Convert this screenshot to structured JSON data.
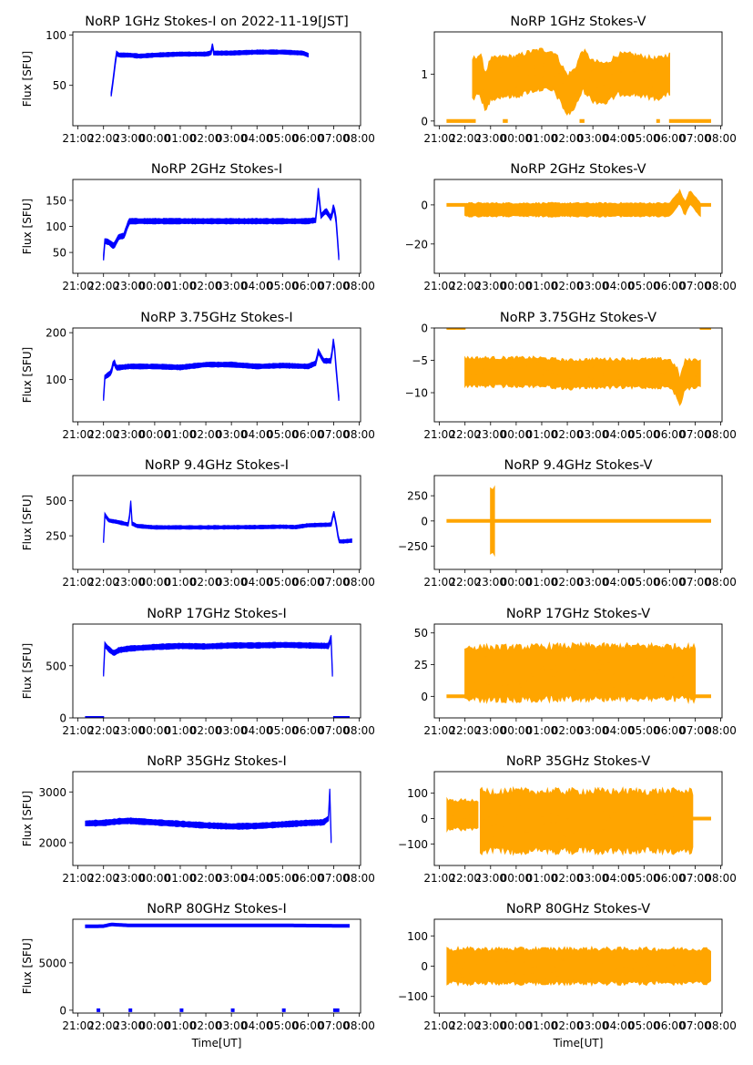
{
  "figure": {
    "columns": [
      "Stokes-I",
      "Stokes-V"
    ],
    "colors": {
      "stokes_i": "#0000ff",
      "stokes_v": "#ffa500"
    }
  },
  "chart_data": [
    {
      "type": "scatter",
      "panel": "1GHz-I",
      "title": "NoRP 1GHz Stokes-I on 2022-11-19[JST]",
      "ylabel": "Flux [SFU]",
      "xlabel": "",
      "ylim": [
        10,
        103
      ],
      "yticks": [
        50,
        100
      ],
      "xticks": [
        "21:00",
        "22:00",
        "23:00",
        "00:00",
        "01:00",
        "02:00",
        "03:00",
        "04:00",
        "05:00",
        "06:00",
        "07:00",
        "08:00"
      ],
      "xlim_hours": [
        -0.2,
        11.05
      ],
      "color": "#0000ff",
      "segments": [
        {
          "x": [
            1.3,
            1.35,
            1.45,
            1.5,
            1.6,
            2.0,
            2.4,
            3.0,
            4.0,
            5.0,
            5.2,
            5.25,
            5.3,
            6.0,
            7.0,
            8.0,
            8.8,
            9.0
          ],
          "y": [
            41,
            50,
            70,
            82,
            80,
            80,
            79,
            80,
            81,
            81,
            82,
            91,
            82,
            82,
            83,
            83,
            82,
            80
          ],
          "spread": 2
        }
      ]
    },
    {
      "type": "scatter",
      "panel": "1GHz-V",
      "title": "NoRP 1GHz Stokes-V",
      "ylabel": "",
      "xlabel": "",
      "ylim": [
        -0.1,
        1.9
      ],
      "yticks": [
        0,
        1
      ],
      "xticks": [
        "21:00",
        "22:00",
        "23:00",
        "00:00",
        "01:00",
        "02:00",
        "03:00",
        "04:00",
        "05:00",
        "06:00",
        "07:00",
        "08:00"
      ],
      "xlim_hours": [
        -0.2,
        11.05
      ],
      "color": "#ffa500",
      "segments": [
        {
          "x": [
            0.3,
            1.4
          ],
          "y": [
            0,
            0
          ],
          "spread": 0.02
        },
        {
          "x": [
            2.5,
            2.65
          ],
          "y": [
            0,
            0
          ],
          "spread": 0.02
        },
        {
          "x": [
            5.5,
            5.65
          ],
          "y": [
            0,
            0
          ],
          "spread": 0.02
        },
        {
          "x": [
            8.5,
            8.6
          ],
          "y": [
            0,
            0
          ],
          "spread": 0.02
        },
        {
          "x": [
            9.0,
            10.6
          ],
          "y": [
            0,
            0
          ],
          "spread": 0.02
        },
        {
          "x": [
            1.3,
            1.6,
            1.8,
            2.0,
            2.5,
            3.0,
            3.5,
            4.0,
            4.5,
            5.0,
            5.3,
            5.6,
            6.0,
            6.5,
            7.0,
            7.5,
            8.0,
            8.5,
            9.0
          ],
          "y": [
            0.9,
            1.0,
            0.6,
            0.9,
            0.95,
            0.95,
            1.05,
            1.1,
            1.05,
            0.55,
            0.7,
            1.1,
            0.85,
            0.8,
            1.0,
            1.0,
            0.95,
            0.9,
            1.0
          ],
          "spread": 0.45
        }
      ]
    },
    {
      "type": "scatter",
      "panel": "2GHz-I",
      "title": "NoRP 2GHz Stokes-I",
      "ylabel": "Flux [SFU]",
      "xlabel": "",
      "ylim": [
        10,
        190
      ],
      "yticks": [
        50,
        100,
        150
      ],
      "xticks": [
        "21:00",
        "22:00",
        "23:00",
        "00:00",
        "01:00",
        "02:00",
        "03:00",
        "04:00",
        "05:00",
        "06:00",
        "07:00",
        "08:00"
      ],
      "xlim_hours": [
        -0.2,
        11.05
      ],
      "color": "#0000ff",
      "segments": [
        {
          "x": [
            1.0,
            1.05,
            1.2,
            1.4,
            1.6,
            1.8,
            2.0,
            3.0,
            5.0,
            7.0,
            9.0,
            9.3,
            9.4,
            9.5,
            9.7,
            9.9,
            10.0,
            10.1,
            10.2
          ],
          "y": [
            40,
            72,
            70,
            62,
            80,
            82,
            110,
            110,
            110,
            110,
            110,
            112,
            170,
            120,
            130,
            115,
            140,
            110,
            40
          ],
          "spread": 5
        }
      ]
    },
    {
      "type": "scatter",
      "panel": "2GHz-V",
      "title": "NoRP 2GHz Stokes-V",
      "ylabel": "",
      "xlabel": "",
      "ylim": [
        -35,
        13
      ],
      "yticks": [
        -20,
        0
      ],
      "xticks": [
        "21:00",
        "22:00",
        "23:00",
        "00:00",
        "01:00",
        "02:00",
        "03:00",
        "04:00",
        "05:00",
        "06:00",
        "07:00",
        "08:00"
      ],
      "xlim_hours": [
        -0.2,
        11.05
      ],
      "color": "#ffa500",
      "segments": [
        {
          "x": [
            0.3,
            1.0
          ],
          "y": [
            0,
            0
          ],
          "spread": 0.3
        },
        {
          "x": [
            10.2,
            10.6
          ],
          "y": [
            0,
            0
          ],
          "spread": 0.3
        },
        {
          "x": [
            1.0,
            3.0,
            5.0,
            7.0,
            9.0,
            9.4,
            9.6,
            9.8,
            10.2
          ],
          "y": [
            -2.5,
            -2.5,
            -2.5,
            -2.5,
            -2.5,
            4,
            -2,
            4,
            -2.5
          ],
          "spread": 3.5
        }
      ]
    },
    {
      "type": "scatter",
      "panel": "3.75GHz-I",
      "title": "NoRP 3.75GHz Stokes-I",
      "ylabel": "Flux [SFU]",
      "xlabel": "",
      "ylim": [
        10,
        210
      ],
      "yticks": [
        100,
        200
      ],
      "xticks": [
        "21:00",
        "22:00",
        "23:00",
        "00:00",
        "01:00",
        "02:00",
        "03:00",
        "04:00",
        "05:00",
        "06:00",
        "07:00",
        "08:00"
      ],
      "xlim_hours": [
        -0.2,
        11.05
      ],
      "color": "#0000ff",
      "segments": [
        {
          "x": [
            1.0,
            1.05,
            1.3,
            1.4,
            1.5,
            2.0,
            3.0,
            4.0,
            5.0,
            6.0,
            7.0,
            8.0,
            9.0,
            9.3,
            9.4,
            9.6,
            9.9,
            10.0,
            10.1,
            10.2
          ],
          "y": [
            60,
            105,
            115,
            140,
            125,
            128,
            128,
            126,
            132,
            132,
            128,
            130,
            128,
            135,
            160,
            140,
            140,
            190,
            120,
            60
          ],
          "spread": 5
        }
      ]
    },
    {
      "type": "scatter",
      "panel": "3.75GHz-V",
      "title": "NoRP 3.75GHz Stokes-V",
      "ylabel": "",
      "xlabel": "",
      "ylim": [
        -14.5,
        0
      ],
      "yticks": [
        -10,
        -5,
        0
      ],
      "xticks": [
        "21:00",
        "22:00",
        "23:00",
        "00:00",
        "01:00",
        "02:00",
        "03:00",
        "04:00",
        "05:00",
        "06:00",
        "07:00",
        "08:00"
      ],
      "xlim_hours": [
        -0.2,
        11.05
      ],
      "color": "#ffa500",
      "segments": [
        {
          "x": [
            0.3,
            1.0
          ],
          "y": [
            0,
            0
          ],
          "spread": 0.08
        },
        {
          "x": [
            10.2,
            10.6
          ],
          "y": [
            0,
            0
          ],
          "spread": 0.08
        },
        {
          "x": [
            1.0,
            2.0,
            3.0,
            4.0,
            5.0,
            6.0,
            7.0,
            8.0,
            9.0,
            9.3,
            9.4,
            9.6,
            10.2
          ],
          "y": [
            -6.8,
            -6.8,
            -6.8,
            -6.8,
            -7.2,
            -7.0,
            -7.0,
            -7.0,
            -7.0,
            -8.5,
            -10,
            -7.2,
            -7.0
          ],
          "spread": 2.3
        }
      ]
    },
    {
      "type": "scatter",
      "panel": "9.4GHz-I",
      "title": "NoRP 9.4GHz Stokes-I",
      "ylabel": "Flux [SFU]",
      "xlabel": "",
      "ylim": [
        10,
        680
      ],
      "yticks": [
        250,
        500
      ],
      "xticks": [
        "21:00",
        "22:00",
        "23:00",
        "00:00",
        "01:00",
        "02:00",
        "03:00",
        "04:00",
        "05:00",
        "06:00",
        "07:00",
        "08:00"
      ],
      "xlim_hours": [
        -0.2,
        11.05
      ],
      "color": "#0000ff",
      "segments": [
        {
          "x": [
            1.0,
            1.05,
            1.2,
            1.5,
            2.0,
            2.05,
            2.1,
            2.3,
            3.0,
            5.0,
            7.0,
            8.0,
            8.5,
            9.0,
            9.9,
            10.0,
            10.1,
            10.2,
            10.4,
            10.7
          ],
          "y": [
            210,
            400,
            360,
            350,
            330,
            560,
            340,
            320,
            310,
            310,
            312,
            315,
            312,
            325,
            330,
            420,
            330,
            210,
            210,
            215
          ],
          "spread": 12
        }
      ]
    },
    {
      "type": "scatter",
      "panel": "9.4GHz-V",
      "title": "NoRP 9.4GHz Stokes-V",
      "ylabel": "",
      "xlabel": "",
      "ylim": [
        -480,
        450
      ],
      "yticks": [
        -250,
        0,
        250
      ],
      "xticks": [
        "21:00",
        "22:00",
        "23:00",
        "00:00",
        "01:00",
        "02:00",
        "03:00",
        "04:00",
        "05:00",
        "06:00",
        "07:00",
        "08:00"
      ],
      "xlim_hours": [
        -0.2,
        11.05
      ],
      "color": "#ffa500",
      "segments": [
        {
          "x": [
            0.3,
            10.6
          ],
          "y": [
            0,
            0
          ],
          "spread": 10
        },
        {
          "x": [
            2.0,
            2.05,
            2.1,
            2.15
          ],
          "y": [
            0,
            0,
            0,
            0
          ],
          "spread": 320
        }
      ]
    },
    {
      "type": "scatter",
      "panel": "17GHz-I",
      "title": "NoRP 17GHz Stokes-I",
      "ylabel": "Flux [SFU]",
      "xlabel": "",
      "ylim": [
        0,
        900
      ],
      "yticks": [
        0,
        500
      ],
      "xticks": [
        "21:00",
        "22:00",
        "23:00",
        "00:00",
        "01:00",
        "02:00",
        "03:00",
        "04:00",
        "05:00",
        "06:00",
        "07:00",
        "08:00"
      ],
      "xlim_hours": [
        -0.2,
        11.05
      ],
      "color": "#0000ff",
      "segments": [
        {
          "x": [
            0.3,
            1.0
          ],
          "y": [
            0,
            0
          ],
          "spread": 5
        },
        {
          "x": [
            1.0,
            1.05,
            1.2,
            1.4,
            1.6,
            2.0,
            3.0,
            4.0,
            5.0,
            6.0,
            7.0,
            8.0,
            9.0,
            9.8,
            9.9,
            9.95
          ],
          "y": [
            420,
            700,
            660,
            620,
            650,
            665,
            680,
            690,
            685,
            695,
            695,
            700,
            695,
            690,
            770,
            420
          ],
          "spread": 25
        },
        {
          "x": [
            10.0,
            10.6
          ],
          "y": [
            0,
            0
          ],
          "spread": 5
        }
      ]
    },
    {
      "type": "scatter",
      "panel": "17GHz-V",
      "title": "NoRP 17GHz Stokes-V",
      "ylabel": "",
      "xlabel": "",
      "ylim": [
        -17,
        57
      ],
      "yticks": [
        0,
        25,
        50
      ],
      "xticks": [
        "21:00",
        "22:00",
        "23:00",
        "00:00",
        "01:00",
        "02:00",
        "03:00",
        "04:00",
        "05:00",
        "06:00",
        "07:00",
        "08:00"
      ],
      "xlim_hours": [
        -0.2,
        11.05
      ],
      "color": "#ffa500",
      "segments": [
        {
          "x": [
            0.3,
            1.0
          ],
          "y": [
            0,
            0
          ],
          "spread": 0.6
        },
        {
          "x": [
            10.0,
            10.6
          ],
          "y": [
            0,
            0
          ],
          "spread": 0.6
        },
        {
          "x": [
            1.0,
            3.0,
            5.0,
            7.0,
            9.0,
            10.0
          ],
          "y": [
            18,
            18,
            19,
            19,
            19,
            18
          ],
          "spread": 22
        }
      ]
    },
    {
      "type": "scatter",
      "panel": "35GHz-I",
      "title": "NoRP 35GHz Stokes-I",
      "ylabel": "Flux [SFU]",
      "xlabel": "",
      "ylim": [
        1550,
        3400
      ],
      "yticks": [
        2000,
        3000
      ],
      "xticks": [
        "21:00",
        "22:00",
        "23:00",
        "00:00",
        "01:00",
        "02:00",
        "03:00",
        "04:00",
        "05:00",
        "06:00",
        "07:00",
        "08:00"
      ],
      "xlim_hours": [
        -0.2,
        11.05
      ],
      "color": "#0000ff",
      "segments": [
        {
          "x": [
            0.3,
            1.0,
            1.6,
            2.0,
            3.0,
            4.0,
            5.0,
            6.0,
            7.0,
            8.0,
            9.0,
            9.6,
            9.8,
            9.85,
            9.9
          ],
          "y": [
            2380,
            2390,
            2420,
            2430,
            2400,
            2370,
            2340,
            2320,
            2330,
            2360,
            2390,
            2400,
            2480,
            3050,
            2050
          ],
          "spread": 55
        }
      ]
    },
    {
      "type": "scatter",
      "panel": "35GHz-V",
      "title": "NoRP 35GHz Stokes-V",
      "ylabel": "",
      "xlabel": "",
      "ylim": [
        -185,
        185
      ],
      "yticks": [
        -100,
        0,
        100
      ],
      "xticks": [
        "21:00",
        "22:00",
        "23:00",
        "00:00",
        "01:00",
        "02:00",
        "03:00",
        "04:00",
        "05:00",
        "06:00",
        "07:00",
        "08:00"
      ],
      "xlim_hours": [
        -0.2,
        11.05
      ],
      "color": "#ffa500",
      "segments": [
        {
          "x": [
            0.3,
            1.5
          ],
          "y": [
            15,
            15
          ],
          "spread": 60
        },
        {
          "x": [
            1.6,
            2.0,
            2.3,
            3.0,
            5.0,
            7.0,
            9.0,
            9.9
          ],
          "y": [
            -10,
            -10,
            -10,
            -10,
            -10,
            -10,
            -10,
            -10
          ],
          "spread": 125
        },
        {
          "x": [
            9.9,
            10.6
          ],
          "y": [
            0,
            0
          ],
          "spread": 3
        }
      ]
    },
    {
      "type": "scatter",
      "panel": "80GHz-I",
      "title": "NoRP 80GHz Stokes-I",
      "ylabel": "Flux [SFU]",
      "xlabel": "Time[UT]",
      "ylim": [
        -300,
        9600
      ],
      "yticks": [
        0,
        5000
      ],
      "xticks": [
        "21:00",
        "22:00",
        "23:00",
        "00:00",
        "01:00",
        "02:00",
        "03:00",
        "04:00",
        "05:00",
        "06:00",
        "07:00",
        "08:00"
      ],
      "xlim_hours": [
        -0.2,
        11.05
      ],
      "color": "#0000ff",
      "segments": [
        {
          "x": [
            0.3,
            1.0,
            1.3,
            2.0,
            5.0,
            8.0,
            10.6
          ],
          "y": [
            8850,
            8870,
            9050,
            8950,
            8950,
            8950,
            8900
          ],
          "spread": 90
        },
        {
          "x": [
            0.75,
            0.85
          ],
          "y": [
            0,
            0
          ],
          "spread": 80
        },
        {
          "x": [
            2.0,
            2.1
          ],
          "y": [
            0,
            0
          ],
          "spread": 80
        },
        {
          "x": [
            4.0,
            4.1
          ],
          "y": [
            0,
            0
          ],
          "spread": 80
        },
        {
          "x": [
            6.0,
            6.1
          ],
          "y": [
            0,
            0
          ],
          "spread": 80
        },
        {
          "x": [
            8.0,
            8.1
          ],
          "y": [
            0,
            0
          ],
          "spread": 80
        },
        {
          "x": [
            10.0,
            10.2
          ],
          "y": [
            0,
            0
          ],
          "spread": 80
        }
      ]
    },
    {
      "type": "scatter",
      "panel": "80GHz-V",
      "title": "NoRP 80GHz Stokes-V",
      "ylabel": "",
      "xlabel": "Time[UT]",
      "ylim": [
        -155,
        155
      ],
      "yticks": [
        -100,
        0,
        100
      ],
      "xticks": [
        "21:00",
        "22:00",
        "23:00",
        "00:00",
        "01:00",
        "02:00",
        "03:00",
        "04:00",
        "05:00",
        "06:00",
        "07:00",
        "08:00"
      ],
      "xlim_hours": [
        -0.2,
        11.05
      ],
      "color": "#ffa500",
      "segments": [
        {
          "x": [
            0.3,
            2.0,
            4.0,
            5.0,
            6.0,
            8.0,
            10.6
          ],
          "y": [
            0,
            0,
            0,
            0,
            0,
            0,
            0
          ],
          "spread": 60
        }
      ]
    }
  ]
}
